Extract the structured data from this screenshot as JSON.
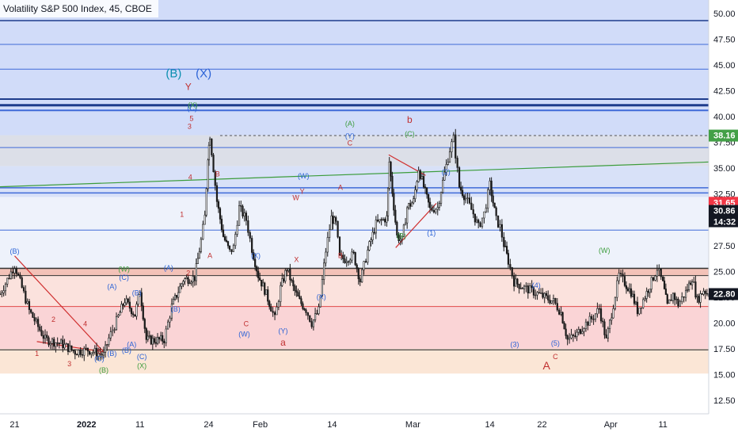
{
  "chart_data": {
    "type": "candlestick",
    "title": "Volatility S&P 500 Index, 45, CBOE",
    "ylim": [
      11.2,
      51.3
    ],
    "y_ticks": [
      12.5,
      15.0,
      17.5,
      20.0,
      22.5,
      25.0,
      27.5,
      30.0,
      32.5,
      35.0,
      37.5,
      40.0,
      42.5,
      45.0,
      47.5,
      50.0
    ],
    "x_ticks": [
      {
        "label": "21",
        "x": 0.7
      },
      {
        "label": "2022",
        "x": 12
      },
      {
        "label": "11",
        "x": 20.4
      },
      {
        "label": "24",
        "x": 31.2
      },
      {
        "label": "Feb",
        "x": 39.3
      },
      {
        "label": "14",
        "x": 50.6
      },
      {
        "label": "Mar",
        "x": 63.3
      },
      {
        "label": "14",
        "x": 75.4
      },
      {
        "label": "22",
        "x": 83.6
      },
      {
        "label": "Apr",
        "x": 94.4
      },
      {
        "label": "11",
        "x": 102.6
      }
    ],
    "x_range": [
      -1.6,
      109.8
    ],
    "price_tags": [
      {
        "value": 38.16,
        "label": "38.16",
        "color": "#43a047"
      },
      {
        "value": 31.65,
        "label": "31.65",
        "color": "#f23645"
      },
      {
        "value": 30.86,
        "label": "30.86",
        "color": "#131722"
      },
      {
        "value": 22.8,
        "label": "22.80",
        "color": "#131722"
      }
    ],
    "countdown": "14:32",
    "zones": [
      {
        "from": 38.2,
        "to": 51.3,
        "color": "#d1dcf9"
      },
      {
        "from": 35.2,
        "to": 38.2,
        "color": "#dcdfe8"
      },
      {
        "from": 32.2,
        "to": 35.2,
        "color": "#d8e1f8"
      },
      {
        "from": 25.3,
        "to": 32.2,
        "color": "#eef2fb"
      },
      {
        "from": 24.6,
        "to": 25.3,
        "color": "#f3c2b8"
      },
      {
        "from": 21.6,
        "to": 24.6,
        "color": "#fbe2dd"
      },
      {
        "from": 17.5,
        "to": 21.6,
        "color": "#fad4d6"
      },
      {
        "from": 15.1,
        "to": 17.5,
        "color": "#fbe6d6"
      }
    ],
    "h_lines": [
      {
        "value": 49.3,
        "color": "#1e3c8c",
        "width": 1.5
      },
      {
        "value": 47.0,
        "color": "#3f6ad8",
        "width": 1
      },
      {
        "value": 44.6,
        "color": "#3f6ad8",
        "width": 1
      },
      {
        "value": 41.7,
        "color": "#1e3c8c",
        "width": 2
      },
      {
        "value": 41.1,
        "color": "#1e3c8c",
        "width": 3
      },
      {
        "value": 40.6,
        "color": "#3f6ad8",
        "width": 2
      },
      {
        "value": 37.0,
        "color": "#3f6ad8",
        "width": 1
      },
      {
        "value": 33.1,
        "color": "#3f6ad8",
        "width": 1.5
      },
      {
        "value": 32.6,
        "color": "#3f6ad8",
        "width": 1.5
      },
      {
        "value": 29.0,
        "color": "#3f6ad8",
        "width": 1
      },
      {
        "value": 25.3,
        "color": "#333333",
        "width": 1.5
      },
      {
        "value": 24.6,
        "color": "#333333",
        "width": 1
      },
      {
        "value": 21.6,
        "color": "#e04848",
        "width": 1
      },
      {
        "value": 17.4,
        "color": "#333333",
        "width": 1.2
      }
    ],
    "trend_lines": [
      {
        "x1": -1.6,
        "y1": 33.2,
        "x2": 109.8,
        "y2": 35.6,
        "color": "#3c9c3c"
      },
      {
        "x1": 0.7,
        "y1": 26.5,
        "x2": 14.7,
        "y2": 17.2,
        "color": "#d03030"
      },
      {
        "x1": 4.2,
        "y1": 18.2,
        "x2": 14.7,
        "y2": 17.2,
        "color": "#d03030"
      },
      {
        "x1": 59.5,
        "y1": 36.3,
        "x2": 65.3,
        "y2": 34.3,
        "color": "#d03030"
      },
      {
        "x1": 60.6,
        "y1": 27.3,
        "x2": 67.0,
        "y2": 31.6,
        "color": "#d03030"
      }
    ],
    "close_path": [
      [
        -1.6,
        22.8
      ],
      [
        0.7,
        25.6
      ],
      [
        3.0,
        21.2
      ],
      [
        5.5,
        18.4
      ],
      [
        8.0,
        18.0
      ],
      [
        10.2,
        17.2
      ],
      [
        12.2,
        17.4
      ],
      [
        14.7,
        16.9
      ],
      [
        15.5,
        18.5
      ],
      [
        17.0,
        20.6
      ],
      [
        18.0,
        22.2
      ],
      [
        19.6,
        20.8
      ],
      [
        20.4,
        23.2
      ],
      [
        21.4,
        18.4
      ],
      [
        22.4,
        18.3
      ],
      [
        24.2,
        18.4
      ],
      [
        25.4,
        21.6
      ],
      [
        27.2,
        24.2
      ],
      [
        29.0,
        24.4
      ],
      [
        30.0,
        28.0
      ],
      [
        30.6,
        30.3
      ],
      [
        31.1,
        36.2
      ],
      [
        31.4,
        38.2
      ],
      [
        32.5,
        31.8
      ],
      [
        33.5,
        28.4
      ],
      [
        34.5,
        26.9
      ],
      [
        35.1,
        27.3
      ],
      [
        36.0,
        31.2
      ],
      [
        37.1,
        30.0
      ],
      [
        38.0,
        27.2
      ],
      [
        39.0,
        24.6
      ],
      [
        40.0,
        23.2
      ],
      [
        41.0,
        21.5
      ],
      [
        41.6,
        20.4
      ],
      [
        42.5,
        23.4
      ],
      [
        43.5,
        25.3
      ],
      [
        44.5,
        23.4
      ],
      [
        45.5,
        22.1
      ],
      [
        46.5,
        21.3
      ],
      [
        47.4,
        20.0
      ],
      [
        48.5,
        21.2
      ],
      [
        49.6,
        27.0
      ],
      [
        50.5,
        30.2
      ],
      [
        51.2,
        29.6
      ],
      [
        51.8,
        26.3
      ],
      [
        52.6,
        26.2
      ],
      [
        54.0,
        26.6
      ],
      [
        55.0,
        24.1
      ],
      [
        56.2,
        27.0
      ],
      [
        57.5,
        29.6
      ],
      [
        59.2,
        30.2
      ],
      [
        59.6,
        35.6
      ],
      [
        60.3,
        31.3
      ],
      [
        60.8,
        28.4
      ],
      [
        61.6,
        28.0
      ],
      [
        62.4,
        31.2
      ],
      [
        63.4,
        31.8
      ],
      [
        64.2,
        35.0
      ],
      [
        65.0,
        33.2
      ],
      [
        66.0,
        31.0
      ],
      [
        67.2,
        31.2
      ],
      [
        68.0,
        33.7
      ],
      [
        69.1,
        36.8
      ],
      [
        69.7,
        37.9
      ],
      [
        70.6,
        33.2
      ],
      [
        71.6,
        32.1
      ],
      [
        72.8,
        30.6
      ],
      [
        73.6,
        29.3
      ],
      [
        74.5,
        30.6
      ],
      [
        75.4,
        33.4
      ],
      [
        76.4,
        30.0
      ],
      [
        77.0,
        29.3
      ],
      [
        77.6,
        27.6
      ],
      [
        78.3,
        26.0
      ],
      [
        79.2,
        24.0
      ],
      [
        80.8,
        23.4
      ],
      [
        82.0,
        23.1
      ],
      [
        84.0,
        22.5
      ],
      [
        85.4,
        22.1
      ],
      [
        86.6,
        21.0
      ],
      [
        87.6,
        18.4
      ],
      [
        88.8,
        18.7
      ],
      [
        90.2,
        19.8
      ],
      [
        91.4,
        20.4
      ],
      [
        92.6,
        21.4
      ],
      [
        93.7,
        18.3
      ],
      [
        94.8,
        21.8
      ],
      [
        95.7,
        24.6
      ],
      [
        96.6,
        23.9
      ],
      [
        97.6,
        23.0
      ],
      [
        98.6,
        21.2
      ],
      [
        99.8,
        22.6
      ],
      [
        100.8,
        24.0
      ],
      [
        101.7,
        25.3
      ],
      [
        102.6,
        23.8
      ],
      [
        103.3,
        21.6
      ],
      [
        104.2,
        22.8
      ],
      [
        105.0,
        21.8
      ],
      [
        106.2,
        23.0
      ],
      [
        107.2,
        24.4
      ],
      [
        108.0,
        22.2
      ],
      [
        109.0,
        23.2
      ],
      [
        109.8,
        22.8
      ]
    ],
    "wave_labels": [
      {
        "text": "(B)",
        "x": 0.7,
        "y": 26.7,
        "color": "#2a62d6",
        "size": 9
      },
      {
        "text": "1",
        "x": 4.2,
        "y": 16.8,
        "color": "#c03030",
        "size": 9
      },
      {
        "text": "2",
        "x": 6.8,
        "y": 20.1,
        "color": "#c03030",
        "size": 9
      },
      {
        "text": "3",
        "x": 9.3,
        "y": 15.8,
        "color": "#c03030",
        "size": 9
      },
      {
        "text": "4",
        "x": 11.8,
        "y": 19.7,
        "color": "#c03030",
        "size": 9
      },
      {
        "text": "5",
        "x": 14.0,
        "y": 17.0,
        "color": "#c03030",
        "size": 9
      },
      {
        "text": "(C)",
        "x": 14.0,
        "y": 16.3,
        "color": "#2a62d6",
        "size": 9
      },
      {
        "text": "(B)",
        "x": 16.0,
        "y": 16.8,
        "color": "#2a62d6",
        "size": 9
      },
      {
        "text": "(A)",
        "x": 16.0,
        "y": 23.3,
        "color": "#2a62d6",
        "size": 9
      },
      {
        "text": "(W)",
        "x": 17.9,
        "y": 25.0,
        "color": "#3c9c3c",
        "size": 9
      },
      {
        "text": "(C)",
        "x": 17.9,
        "y": 24.2,
        "color": "#2a62d6",
        "size": 9
      },
      {
        "text": "(B)",
        "x": 19.9,
        "y": 22.7,
        "color": "#2a62d6",
        "size": 9
      },
      {
        "text": "(A)",
        "x": 19.1,
        "y": 17.7,
        "color": "#2a62d6",
        "size": 9
      },
      {
        "text": "(B)",
        "x": 18.3,
        "y": 17.1,
        "color": "#2a62d6",
        "size": 9
      },
      {
        "text": "(C)",
        "x": 20.7,
        "y": 16.5,
        "color": "#2a62d6",
        "size": 9
      },
      {
        "text": "(B)",
        "x": 26.0,
        "y": 21.1,
        "color": "#2a62d6",
        "size": 9
      },
      {
        "text": "(A)",
        "x": 24.9,
        "y": 25.1,
        "color": "#2a62d6",
        "size": 9
      },
      {
        "text": "2",
        "x": 28.0,
        "y": 24.6,
        "color": "#c03030",
        "size": 9
      },
      {
        "text": "1",
        "x": 27.0,
        "y": 30.3,
        "color": "#c03030",
        "size": 9
      },
      {
        "text": "4",
        "x": 28.3,
        "y": 33.9,
        "color": "#c03030",
        "size": 9
      },
      {
        "text": "3",
        "x": 28.2,
        "y": 38.8,
        "color": "#c03030",
        "size": 9
      },
      {
        "text": "5",
        "x": 28.5,
        "y": 39.6,
        "color": "#c03030",
        "size": 9
      },
      {
        "text": "(C)",
        "x": 28.6,
        "y": 40.6,
        "color": "#2a62d6",
        "size": 9
      },
      {
        "text": "Y",
        "x": 28.0,
        "y": 42.6,
        "color": "#c03030",
        "size": 12
      },
      {
        "text": "(B)",
        "x": 25.7,
        "y": 43.8,
        "color": "#0b8fb0",
        "size": 15
      },
      {
        "text": "(X)",
        "x": 30.4,
        "y": 43.8,
        "color": "#2a62d6",
        "size": 15
      },
      {
        "text": "B",
        "x": 32.6,
        "y": 34.2,
        "color": "#c03030",
        "size": 9
      },
      {
        "text": "A",
        "x": 31.4,
        "y": 26.3,
        "color": "#c03030",
        "size": 9
      },
      {
        "text": "(X)",
        "x": 38.6,
        "y": 26.3,
        "color": "#2a62d6",
        "size": 9
      },
      {
        "text": "C",
        "x": 37.1,
        "y": 19.7,
        "color": "#c03030",
        "size": 9
      },
      {
        "text": "(W)",
        "x": 36.8,
        "y": 18.7,
        "color": "#2a62d6",
        "size": 9
      },
      {
        "text": "(Y)",
        "x": 42.9,
        "y": 19.0,
        "color": "#2a62d6",
        "size": 9
      },
      {
        "text": "a",
        "x": 42.9,
        "y": 17.8,
        "color": "#c03030",
        "size": 12
      },
      {
        "text": "W",
        "x": 44.9,
        "y": 31.9,
        "color": "#c03030",
        "size": 9
      },
      {
        "text": "Y",
        "x": 45.9,
        "y": 32.5,
        "color": "#c03030",
        "size": 9
      },
      {
        "text": "(W)",
        "x": 46.1,
        "y": 34.0,
        "color": "#2a62d6",
        "size": 9
      },
      {
        "text": "X",
        "x": 45.0,
        "y": 25.9,
        "color": "#c03030",
        "size": 9
      },
      {
        "text": "(X)",
        "x": 48.9,
        "y": 22.3,
        "color": "#2a62d6",
        "size": 9
      },
      {
        "text": "A",
        "x": 51.9,
        "y": 32.9,
        "color": "#c03030",
        "size": 9
      },
      {
        "text": "B",
        "x": 51.9,
        "y": 26.3,
        "color": "#c03030",
        "size": 9
      },
      {
        "text": "(A)",
        "x": 53.4,
        "y": 39.1,
        "color": "#3c9c3c",
        "size": 9
      },
      {
        "text": "(Y)",
        "x": 53.4,
        "y": 37.9,
        "color": "#2a62d6",
        "size": 9
      },
      {
        "text": "C",
        "x": 53.4,
        "y": 37.2,
        "color": "#c03030",
        "size": 9
      },
      {
        "text": "(C)",
        "x": 62.8,
        "y": 38.1,
        "color": "#3c9c3c",
        "size": 9
      },
      {
        "text": "b",
        "x": 62.8,
        "y": 39.4,
        "color": "#c03030",
        "size": 12
      },
      {
        "text": "(B)",
        "x": 61.5,
        "y": 28.2,
        "color": "#3c9c3c",
        "size": 9
      },
      {
        "text": "(1)",
        "x": 66.2,
        "y": 28.5,
        "color": "#2a62d6",
        "size": 9
      },
      {
        "text": "(2)",
        "x": 68.5,
        "y": 34.4,
        "color": "#2a62d6",
        "size": 9
      },
      {
        "text": "(3)",
        "x": 79.3,
        "y": 17.7,
        "color": "#2a62d6",
        "size": 9
      },
      {
        "text": "(4)",
        "x": 82.7,
        "y": 23.4,
        "color": "#2a62d6",
        "size": 9
      },
      {
        "text": "(5)",
        "x": 85.7,
        "y": 17.8,
        "color": "#2a62d6",
        "size": 9
      },
      {
        "text": "C",
        "x": 85.7,
        "y": 16.5,
        "color": "#c03030",
        "size": 9
      },
      {
        "text": "A",
        "x": 84.3,
        "y": 15.5,
        "color": "#c03030",
        "size": 14
      },
      {
        "text": "(W)",
        "x": 93.4,
        "y": 26.8,
        "color": "#3c9c3c",
        "size": 9
      },
      {
        "text": "(X)",
        "x": 20.7,
        "y": 15.6,
        "color": "#3c9c3c",
        "size": 9
      },
      {
        "text": "(B)",
        "x": 14.7,
        "y": 15.2,
        "color": "#3c9c3c",
        "size": 9
      },
      {
        "text": "(X)",
        "x": 28.7,
        "y": 40.9,
        "color": "#3c9c3c",
        "size": 9
      }
    ]
  }
}
